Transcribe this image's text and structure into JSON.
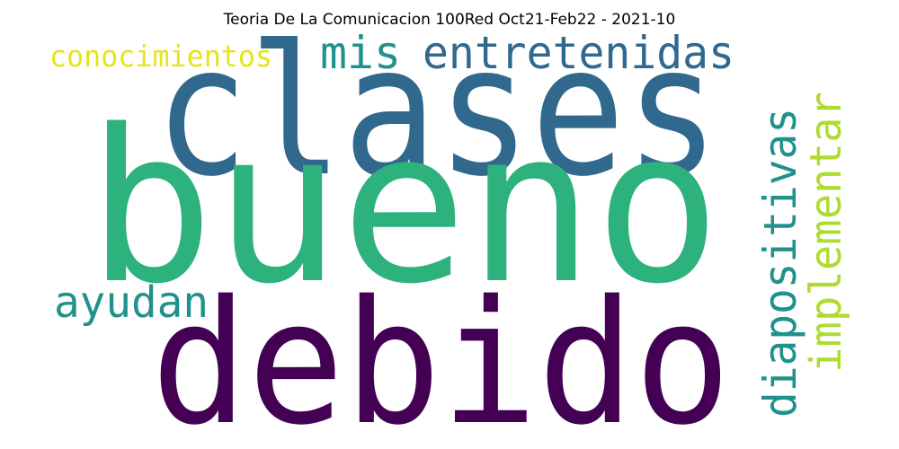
{
  "title": "Teoria De La Comunicacion 100Red Oct21-Feb22 - 2021-10",
  "words": [
    {
      "key": "clases",
      "text": "clases",
      "color": "#31688e"
    },
    {
      "key": "bueno",
      "text": "bueno",
      "color": "#2db27d"
    },
    {
      "key": "debido",
      "text": "debido",
      "color": "#440154"
    },
    {
      "key": "mis",
      "text": "mis",
      "color": "#21918c"
    },
    {
      "key": "entretenidas",
      "text": "entretenidas",
      "color": "#31688e"
    },
    {
      "key": "conocimientos",
      "text": "conocimientos",
      "color": "#e7e419"
    },
    {
      "key": "ayudan",
      "text": "ayudan",
      "color": "#21918c"
    },
    {
      "key": "diapositivas",
      "text": "diapositivas",
      "color": "#21918c"
    },
    {
      "key": "implementar",
      "text": "implementar",
      "color": "#addc30"
    }
  ]
}
